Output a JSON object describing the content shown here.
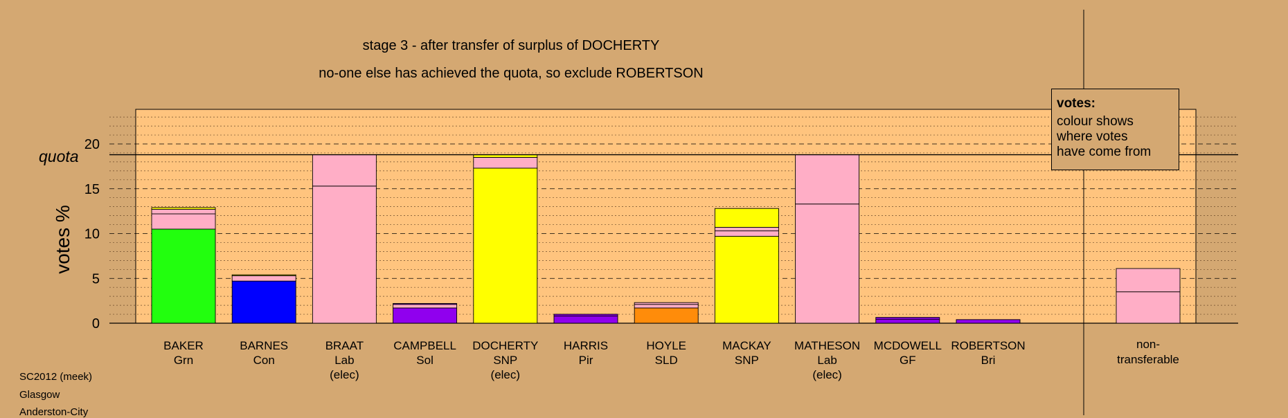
{
  "chart_data": {
    "type": "bar",
    "stacked": true,
    "title": "stage 3 - after transfer of surplus of DOCHERTY",
    "subtitle": "no-one else has achieved the quota, so exclude ROBERTSON",
    "ylabel": "votes %",
    "ylim": [
      0,
      23.5
    ],
    "yticks": [
      0,
      5,
      10,
      15,
      20
    ],
    "quota": 18.8,
    "quota_label": "quota",
    "grid": true,
    "colors": {
      "green": "#22ff0e",
      "blue": "#0000ff",
      "pink": "#ffaec6",
      "purple": "#9000ee",
      "yellow": "#ffff00",
      "orange": "#ff8c0a"
    },
    "candidates": [
      {
        "name": "BAKER",
        "party": "Grn",
        "note": "",
        "segments": [
          {
            "color": "green",
            "value": 10.5
          },
          {
            "color": "pink",
            "value": 1.7
          },
          {
            "color": "pink",
            "value": 0.5
          },
          {
            "color": "yellow",
            "value": 0.2
          }
        ]
      },
      {
        "name": "BARNES",
        "party": "Con",
        "note": "",
        "segments": [
          {
            "color": "blue",
            "value": 4.7
          },
          {
            "color": "pink",
            "value": 0.6
          },
          {
            "color": "yellow",
            "value": 0.1
          }
        ]
      },
      {
        "name": "BRAAT",
        "party": "Lab",
        "note": "(elec)",
        "segments": [
          {
            "color": "pink",
            "value": 15.3
          },
          {
            "color": "pink",
            "value": 3.5
          }
        ]
      },
      {
        "name": "CAMPBELL",
        "party": "Sol",
        "note": "",
        "segments": [
          {
            "color": "purple",
            "value": 1.7
          },
          {
            "color": "pink",
            "value": 0.4
          },
          {
            "color": "purple",
            "value": 0.1
          }
        ]
      },
      {
        "name": "DOCHERTY",
        "party": "SNP",
        "note": "(elec)",
        "segments": [
          {
            "color": "yellow",
            "value": 17.3
          },
          {
            "color": "pink",
            "value": 1.2
          },
          {
            "color": "yellow",
            "value": 0.3
          }
        ]
      },
      {
        "name": "HARRIS",
        "party": "Pir",
        "note": "",
        "segments": [
          {
            "color": "purple",
            "value": 0.8
          },
          {
            "color": "purple",
            "value": 0.2
          }
        ]
      },
      {
        "name": "HOYLE",
        "party": "SLD",
        "note": "",
        "segments": [
          {
            "color": "orange",
            "value": 1.7
          },
          {
            "color": "pink",
            "value": 0.4
          },
          {
            "color": "pink",
            "value": 0.2
          }
        ]
      },
      {
        "name": "MACKAY",
        "party": "SNP",
        "note": "",
        "segments": [
          {
            "color": "yellow",
            "value": 9.7
          },
          {
            "color": "pink",
            "value": 0.6
          },
          {
            "color": "pink",
            "value": 0.4
          },
          {
            "color": "yellow",
            "value": 2.1
          }
        ]
      },
      {
        "name": "MATHESON",
        "party": "Lab",
        "note": "(elec)",
        "segments": [
          {
            "color": "pink",
            "value": 13.3
          },
          {
            "color": "pink",
            "value": 5.5
          }
        ]
      },
      {
        "name": "MCDOWELL",
        "party": "GF",
        "note": "",
        "segments": [
          {
            "color": "purple",
            "value": 0.45
          },
          {
            "color": "purple",
            "value": 0.2
          }
        ]
      },
      {
        "name": "ROBERTSON",
        "party": "Bri",
        "note": "",
        "segments": [
          {
            "color": "purple",
            "value": 0.4
          }
        ]
      }
    ],
    "nontransferable": {
      "label1": "non-",
      "label2": "transferable",
      "segments": [
        {
          "color": "pink",
          "value": 3.5
        },
        {
          "color": "pink",
          "value": 2.6
        }
      ]
    }
  },
  "legend": {
    "title": "votes:",
    "line1": "colour shows",
    "line2": "where votes",
    "line3": "have come from"
  },
  "footer": {
    "line1": "SC2012 (meek)",
    "line2": "Glasgow",
    "line3": "Anderston-City"
  }
}
